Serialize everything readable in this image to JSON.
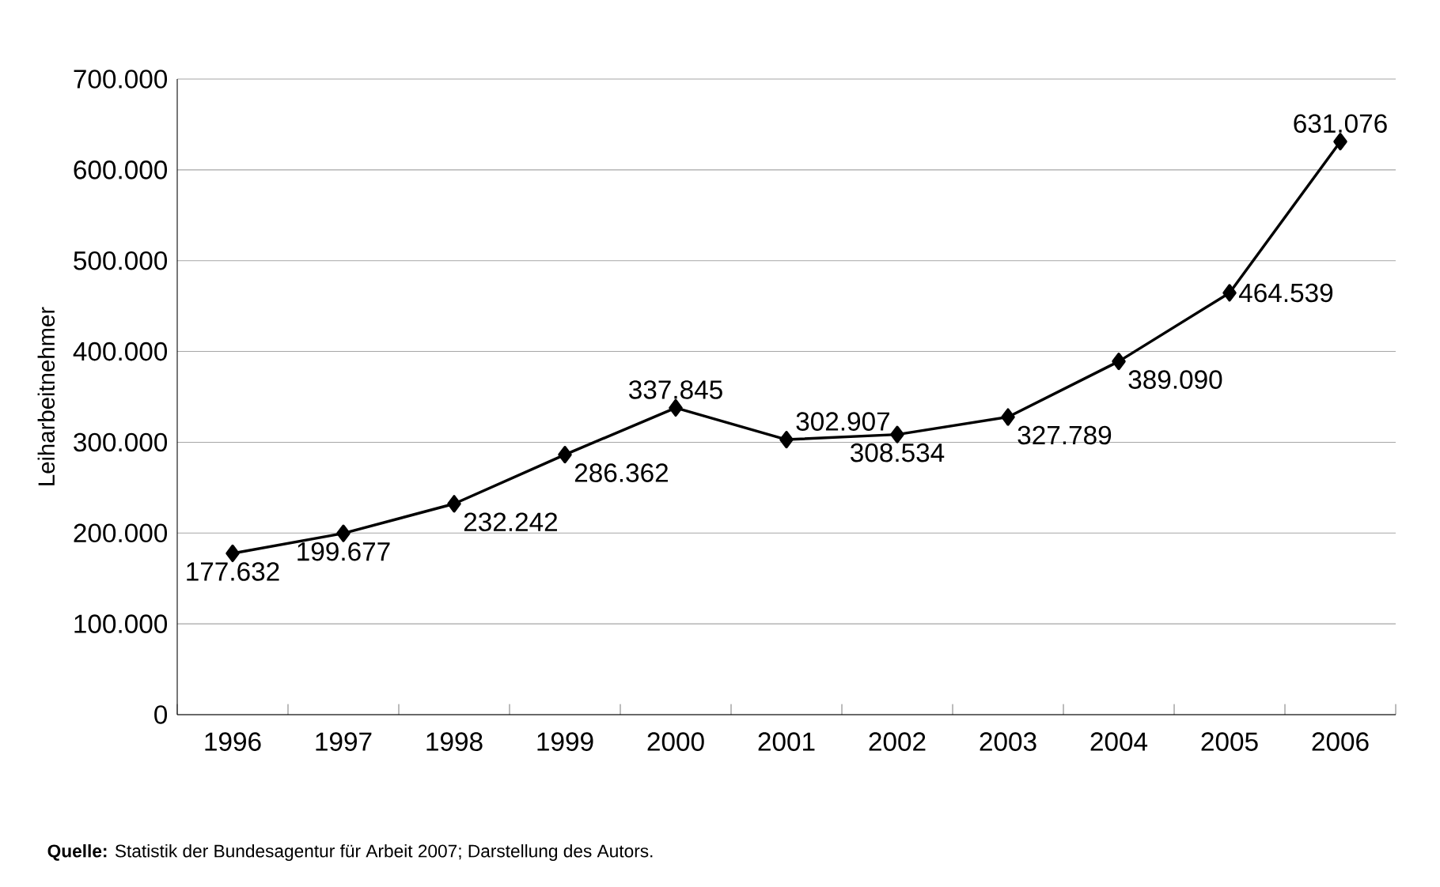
{
  "chart_data": {
    "type": "line",
    "ylabel": "Leiharbeitnehmer",
    "categories": [
      "1996",
      "1997",
      "1998",
      "1999",
      "2000",
      "2001",
      "2002",
      "2003",
      "2004",
      "2005",
      "2006"
    ],
    "values": [
      177632,
      199677,
      232242,
      286362,
      337845,
      302907,
      308534,
      327789,
      389090,
      464539,
      631076
    ],
    "value_labels": [
      "177.632",
      "199.677",
      "232.242",
      "286.362",
      "337.845",
      "302.907",
      "308.534",
      "327.789",
      "389.090",
      "464.539",
      "631.076"
    ],
    "color": "#000000",
    "marker": "diamond",
    "line_style": "solid",
    "grid": "y",
    "ylim": [
      0,
      700000
    ],
    "yticks": [
      {
        "value": 0,
        "label": "0"
      },
      {
        "value": 100000,
        "label": "100.000"
      },
      {
        "value": 200000,
        "label": "200.000"
      },
      {
        "value": 300000,
        "label": "300.000"
      },
      {
        "value": 400000,
        "label": "400.000"
      },
      {
        "value": 500000,
        "label": "500.000"
      },
      {
        "value": 600000,
        "label": "600.000"
      },
      {
        "value": 700000,
        "label": "700.000"
      }
    ],
    "annotations": [
      "**Quelle:** Statistik der Bundesagentur für Arbeit 2007; Darstellung des Autors."
    ]
  }
}
